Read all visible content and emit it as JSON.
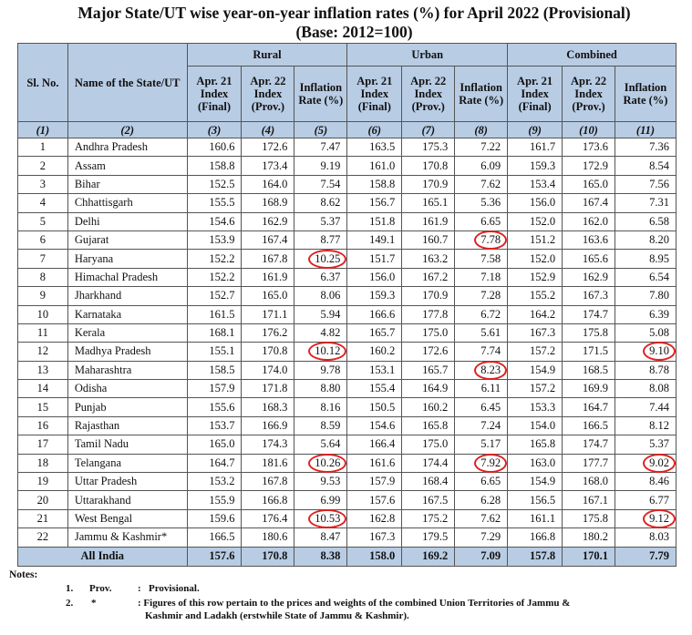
{
  "title_line1": "Major State/UT wise year-on-year inflation rates (%) for April 2022 (Provisional)",
  "title_line2": "(Base: 2012=100)",
  "headers": {
    "sl_no": "Sl. No.",
    "name": "Name of the State/UT",
    "groups": [
      "Rural",
      "Urban",
      "Combined"
    ],
    "sub": [
      "Apr. 21 Index (Final)",
      "Apr. 22 Index (Prov.)",
      "Inflation Rate (%)"
    ],
    "col_numbers": [
      "(1)",
      "(2)",
      "(3)",
      "(4)",
      "(5)",
      "(6)",
      "(7)",
      "(8)",
      "(9)",
      "(10)",
      "(11)"
    ]
  },
  "highlight_color": "#e02020",
  "header_bg": "#b8cce4",
  "rows": [
    {
      "sl": "1",
      "name": "Andhra Pradesh",
      "v": [
        "160.6",
        "172.6",
        "7.47",
        "163.5",
        "175.3",
        "7.22",
        "161.7",
        "173.6",
        "7.36"
      ],
      "circled": []
    },
    {
      "sl": "2",
      "name": "Assam",
      "v": [
        "158.8",
        "173.4",
        "9.19",
        "161.0",
        "170.8",
        "6.09",
        "159.3",
        "172.9",
        "8.54"
      ],
      "circled": []
    },
    {
      "sl": "3",
      "name": "Bihar",
      "v": [
        "152.5",
        "164.0",
        "7.54",
        "158.8",
        "170.9",
        "7.62",
        "153.4",
        "165.0",
        "7.56"
      ],
      "circled": []
    },
    {
      "sl": "4",
      "name": "Chhattisgarh",
      "v": [
        "155.5",
        "168.9",
        "8.62",
        "156.7",
        "165.1",
        "5.36",
        "156.0",
        "167.4",
        "7.31"
      ],
      "circled": []
    },
    {
      "sl": "5",
      "name": "Delhi",
      "v": [
        "154.6",
        "162.9",
        "5.37",
        "151.8",
        "161.9",
        "6.65",
        "152.0",
        "162.0",
        "6.58"
      ],
      "circled": []
    },
    {
      "sl": "6",
      "name": "Gujarat",
      "v": [
        "153.9",
        "167.4",
        "8.77",
        "149.1",
        "160.7",
        "7.78",
        "151.2",
        "163.6",
        "8.20"
      ],
      "circled": [
        5
      ]
    },
    {
      "sl": "7",
      "name": "Haryana",
      "v": [
        "152.2",
        "167.8",
        "10.25",
        "151.7",
        "163.2",
        "7.58",
        "152.0",
        "165.6",
        "8.95"
      ],
      "circled": [
        2
      ]
    },
    {
      "sl": "8",
      "name": "Himachal Pradesh",
      "v": [
        "152.2",
        "161.9",
        "6.37",
        "156.0",
        "167.2",
        "7.18",
        "152.9",
        "162.9",
        "6.54"
      ],
      "circled": []
    },
    {
      "sl": "9",
      "name": "Jharkhand",
      "v": [
        "152.7",
        "165.0",
        "8.06",
        "159.3",
        "170.9",
        "7.28",
        "155.2",
        "167.3",
        "7.80"
      ],
      "circled": []
    },
    {
      "sl": "10",
      "name": "Karnataka",
      "v": [
        "161.5",
        "171.1",
        "5.94",
        "166.6",
        "177.8",
        "6.72",
        "164.2",
        "174.7",
        "6.39"
      ],
      "circled": []
    },
    {
      "sl": "11",
      "name": "Kerala",
      "v": [
        "168.1",
        "176.2",
        "4.82",
        "165.7",
        "175.0",
        "5.61",
        "167.3",
        "175.8",
        "5.08"
      ],
      "circled": []
    },
    {
      "sl": "12",
      "name": "Madhya Pradesh",
      "v": [
        "155.1",
        "170.8",
        "10.12",
        "160.2",
        "172.6",
        "7.74",
        "157.2",
        "171.5",
        "9.10"
      ],
      "circled": [
        2,
        8
      ]
    },
    {
      "sl": "13",
      "name": "Maharashtra",
      "v": [
        "158.5",
        "174.0",
        "9.78",
        "153.1",
        "165.7",
        "8.23",
        "154.9",
        "168.5",
        "8.78"
      ],
      "circled": [
        5
      ]
    },
    {
      "sl": "14",
      "name": "Odisha",
      "v": [
        "157.9",
        "171.8",
        "8.80",
        "155.4",
        "164.9",
        "6.11",
        "157.2",
        "169.9",
        "8.08"
      ],
      "circled": []
    },
    {
      "sl": "15",
      "name": "Punjab",
      "v": [
        "155.6",
        "168.3",
        "8.16",
        "150.5",
        "160.2",
        "6.45",
        "153.3",
        "164.7",
        "7.44"
      ],
      "circled": []
    },
    {
      "sl": "16",
      "name": "Rajasthan",
      "v": [
        "153.7",
        "166.9",
        "8.59",
        "154.6",
        "165.8",
        "7.24",
        "154.0",
        "166.5",
        "8.12"
      ],
      "circled": []
    },
    {
      "sl": "17",
      "name": "Tamil Nadu",
      "v": [
        "165.0",
        "174.3",
        "5.64",
        "166.4",
        "175.0",
        "5.17",
        "165.8",
        "174.7",
        "5.37"
      ],
      "circled": []
    },
    {
      "sl": "18",
      "name": "Telangana",
      "v": [
        "164.7",
        "181.6",
        "10.26",
        "161.6",
        "174.4",
        "7.92",
        "163.0",
        "177.7",
        "9.02"
      ],
      "circled": [
        2,
        5,
        8
      ]
    },
    {
      "sl": "19",
      "name": "Uttar Pradesh",
      "v": [
        "153.2",
        "167.8",
        "9.53",
        "157.9",
        "168.4",
        "6.65",
        "154.9",
        "168.0",
        "8.46"
      ],
      "circled": []
    },
    {
      "sl": "20",
      "name": "Uttarakhand",
      "v": [
        "155.9",
        "166.8",
        "6.99",
        "157.6",
        "167.5",
        "6.28",
        "156.5",
        "167.1",
        "6.77"
      ],
      "circled": []
    },
    {
      "sl": "21",
      "name": "West Bengal",
      "v": [
        "159.6",
        "176.4",
        "10.53",
        "162.8",
        "175.2",
        "7.62",
        "161.1",
        "175.8",
        "9.12"
      ],
      "circled": [
        2,
        8
      ]
    },
    {
      "sl": "22",
      "name": "Jammu & Kashmir*",
      "v": [
        "166.5",
        "180.6",
        "8.47",
        "167.3",
        "179.5",
        "7.29",
        "166.8",
        "180.2",
        "8.03"
      ],
      "circled": []
    }
  ],
  "total": {
    "name": "All India",
    "v": [
      "157.6",
      "170.8",
      "8.38",
      "158.0",
      "169.2",
      "7.09",
      "157.8",
      "170.1",
      "7.79"
    ]
  },
  "notes": {
    "heading": "Notes:",
    "n1_num": "1.",
    "n1_key": "Prov.",
    "n1_sep": ":",
    "n1_text": "Provisional.",
    "n2_num": "2.",
    "n2_key": "*",
    "n2_text1": ": Figures of this row pertain to the prices and weights of the combined Union Territories of Jammu &",
    "n2_text2": "Kashmir and Ladakh (erstwhile State of Jammu & Kashmir)."
  }
}
